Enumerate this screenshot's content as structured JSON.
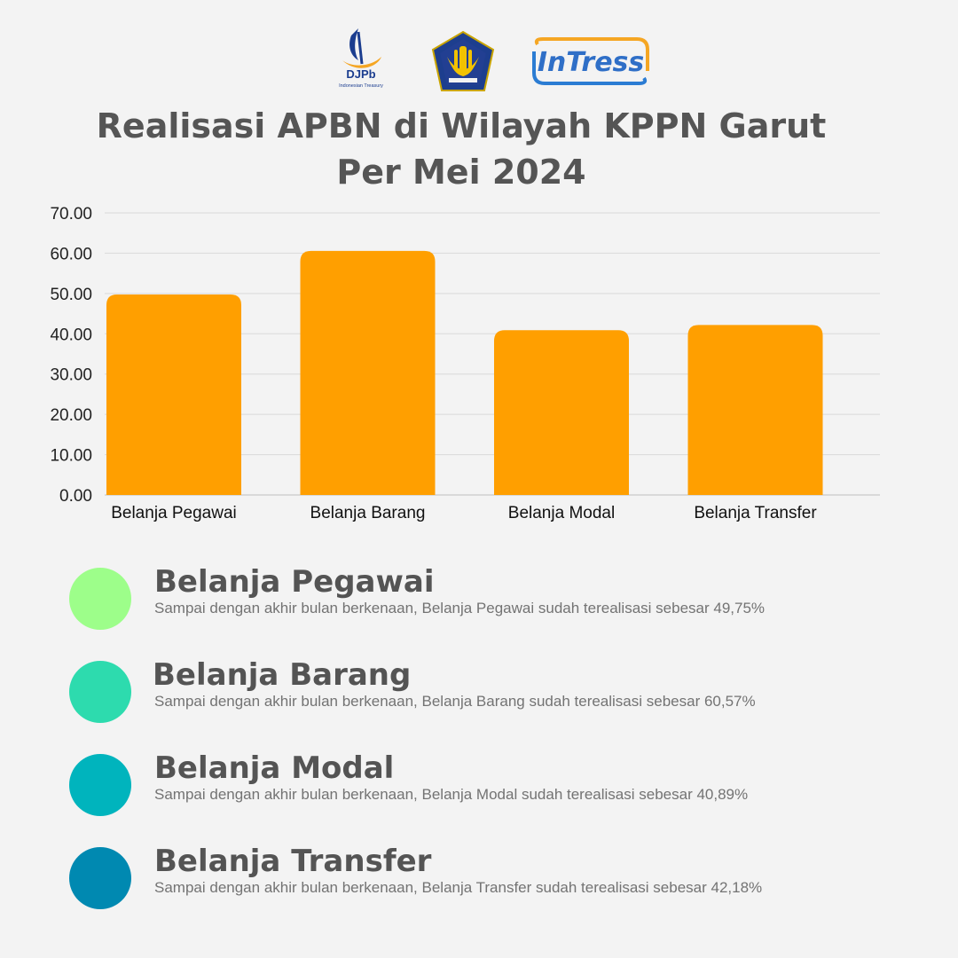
{
  "logos": {
    "djpb_text": "DJPb",
    "djpb_sub": "Indonesian Treasury",
    "kemenkeu_icon": "kemenkeu-emblem-icon",
    "intress_text": "InTress"
  },
  "title_line1": "Realisasi APBN di Wilayah KPPN Garut",
  "title_line2": "Per Mei 2024",
  "chart_data": {
    "type": "bar",
    "categories": [
      "Belanja Pegawai",
      "Belanja Barang",
      "Belanja Modal",
      "Belanja Transfer"
    ],
    "values": [
      49.75,
      60.57,
      40.89,
      42.18
    ],
    "ylim": [
      0,
      70
    ],
    "yticks": [
      "0.00",
      "10.00",
      "20.00",
      "30.00",
      "40.00",
      "50.00",
      "60.00",
      "70.00"
    ],
    "grid": true,
    "bar_color": "#ff9f00"
  },
  "legend": [
    {
      "name": "Belanja Pegawai",
      "desc": "Sampai dengan akhir bulan berkenaan, Belanja Pegawai sudah terealisasi sebesar 49,75%",
      "color": "#9dfe8a"
    },
    {
      "name": "Belanja Barang",
      "desc": "Sampai dengan akhir bulan berkenaan, Belanja Barang sudah terealisasi sebesar 60,57%",
      "color": "#2ddbae"
    },
    {
      "name": "Belanja Modal",
      "desc": "Sampai dengan akhir bulan berkenaan, Belanja Modal sudah terealisasi sebesar 40,89%",
      "color": "#00b4bd"
    },
    {
      "name": "Belanja Transfer",
      "desc": "Sampai dengan akhir bulan berkenaan, Belanja Transfer sudah terealisasi sebesar 42,18%",
      "color": "#0089b1"
    }
  ]
}
